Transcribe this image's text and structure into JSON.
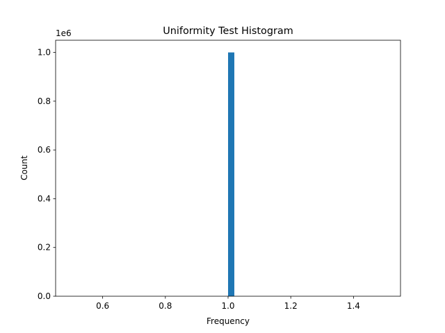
{
  "chart_data": {
    "type": "histogram",
    "title": "Uniformity Test Histogram",
    "x_label": "Frequency",
    "y_label": "Count",
    "y_offset_label": "1e6",
    "bins": [
      0.5,
      0.52,
      0.54,
      0.56,
      0.58,
      0.6,
      0.62,
      0.64,
      0.66,
      0.68,
      0.7,
      0.72,
      0.74,
      0.76,
      0.78,
      0.8,
      0.82,
      0.84,
      0.86,
      0.88,
      0.9,
      0.92,
      0.94,
      0.96,
      0.98,
      1.0,
      1.02,
      1.04,
      1.06,
      1.08,
      1.1,
      1.12,
      1.14,
      1.16,
      1.18,
      1.2,
      1.22,
      1.24,
      1.26,
      1.28,
      1.3,
      1.32,
      1.34,
      1.36,
      1.38,
      1.4,
      1.42,
      1.44,
      1.46,
      1.48,
      1.5
    ],
    "values": [
      0,
      0,
      0,
      0,
      0,
      0,
      0,
      0,
      0,
      0,
      0,
      0,
      0,
      0,
      0,
      0,
      0,
      0,
      0,
      0,
      0,
      0,
      0,
      0,
      0,
      1000000,
      0,
      0,
      0,
      0,
      0,
      0,
      0,
      0,
      0,
      0,
      0,
      0,
      0,
      0,
      0,
      0,
      0,
      0,
      0,
      0,
      0,
      0,
      0,
      0
    ],
    "color": "#1f77b4",
    "xlim": [
      0.45,
      1.55
    ],
    "xticks": [
      0.6,
      0.8,
      {
        "value": 1,
        "label": "1.0"
      },
      1.2,
      1.4
    ],
    "ylim": [
      0,
      1050000
    ],
    "yticks": [
      {
        "value": 0,
        "label": "0.0"
      },
      {
        "value": 200000,
        "label": "0.2"
      },
      {
        "value": 400000,
        "label": "0.4"
      },
      {
        "value": 600000,
        "label": "0.6"
      },
      {
        "value": 800000,
        "label": "0.8"
      },
      {
        "value": 1000000,
        "label": "1.0"
      }
    ],
    "grid": false
  }
}
